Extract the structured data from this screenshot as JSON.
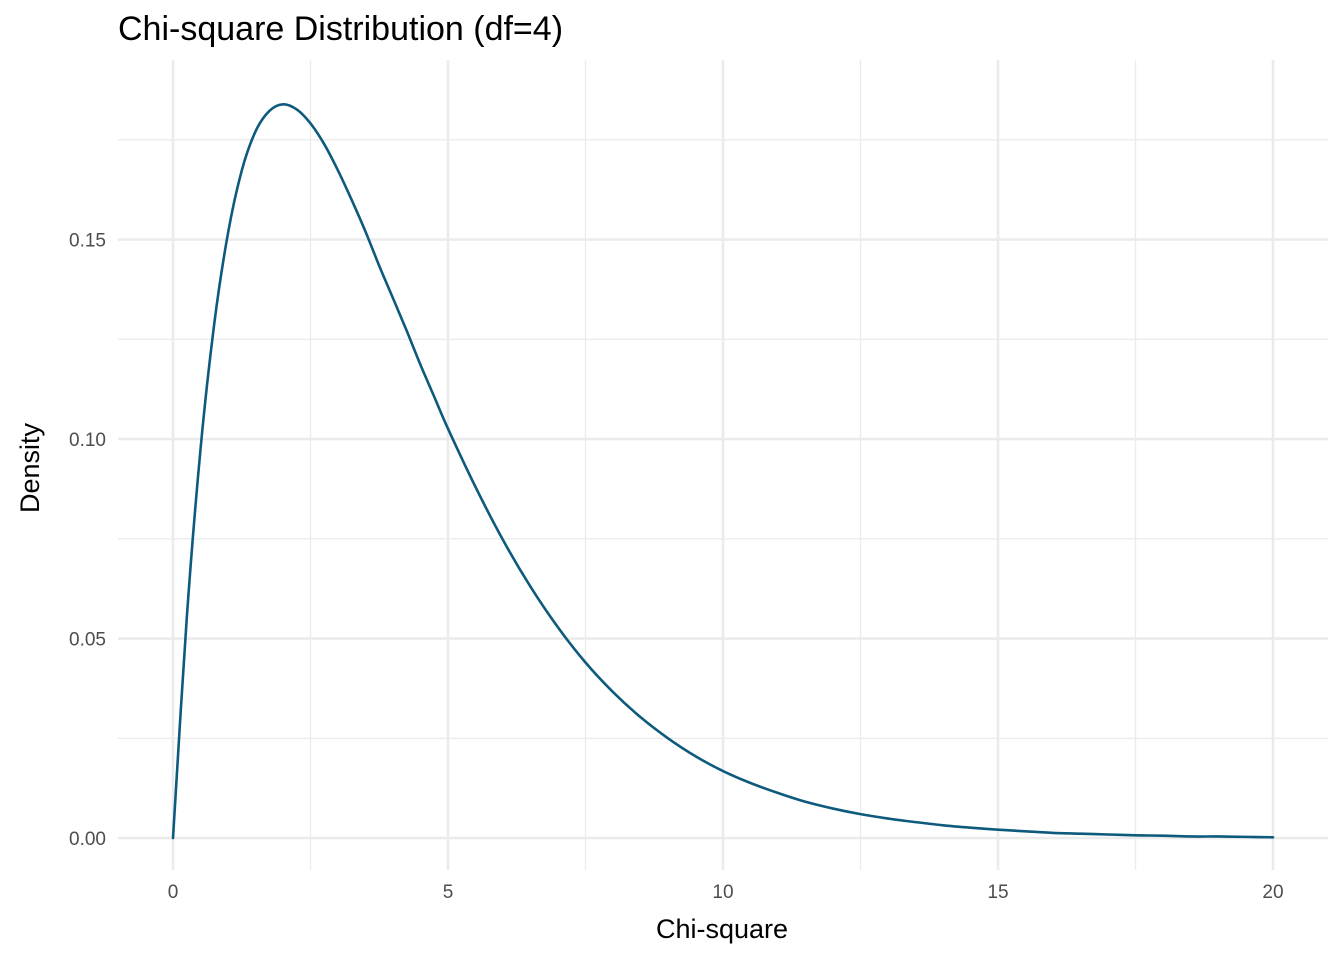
{
  "chart_data": {
    "type": "line",
    "title": "Chi-square Distribution (df=4)",
    "xlabel": "Chi-square",
    "ylabel": "Density",
    "xlim": [
      -1,
      21
    ],
    "ylim": [
      -0.008,
      0.195
    ],
    "x_ticks": [
      0,
      5,
      10,
      15,
      20
    ],
    "x_tick_labels": [
      "0",
      "5",
      "10",
      "15",
      "20"
    ],
    "x_minor_ticks": [
      2.5,
      7.5,
      12.5,
      17.5
    ],
    "y_ticks": [
      0.0,
      0.05,
      0.1,
      0.15
    ],
    "y_tick_labels": [
      "0.00",
      "0.05",
      "0.10",
      "0.15"
    ],
    "y_minor_ticks": [
      0.025,
      0.075,
      0.125,
      0.175
    ],
    "grid": true,
    "line_color": "#0e5a7d",
    "grid_color": "#ebebeb",
    "series": [
      {
        "x": [
          0,
          0.25,
          0.5,
          0.75,
          1,
          1.25,
          1.5,
          1.75,
          2,
          2.25,
          2.5,
          2.75,
          3,
          3.25,
          3.5,
          3.75,
          4,
          4.25,
          4.5,
          4.75,
          5,
          5.5,
          6,
          6.5,
          7,
          7.5,
          8,
          8.5,
          9,
          9.5,
          10,
          10.5,
          11,
          11.5,
          12,
          12.5,
          13,
          13.5,
          14,
          14.5,
          15,
          15.5,
          16,
          16.5,
          17,
          17.5,
          18,
          18.5,
          19,
          19.5,
          20
        ],
        "y": [
          0,
          0.0551,
          0.0974,
          0.1289,
          0.1516,
          0.1673,
          0.1771,
          0.1822,
          0.1839,
          0.1826,
          0.1791,
          0.1739,
          0.1673,
          0.1599,
          0.152,
          0.1434,
          0.1353,
          0.1271,
          0.1186,
          0.1106,
          0.1026,
          0.088,
          0.0747,
          0.063,
          0.0528,
          0.044,
          0.0366,
          0.0303,
          0.025,
          0.0205,
          0.0168,
          0.0138,
          0.0113,
          0.0091,
          0.0074,
          0.006,
          0.0049,
          0.004,
          0.0032,
          0.0026,
          0.0021,
          0.0017,
          0.0013,
          0.0011,
          0.0009,
          0.0007,
          0.0006,
          0.0004,
          0.0004,
          0.0003,
          0.0002
        ]
      }
    ]
  }
}
